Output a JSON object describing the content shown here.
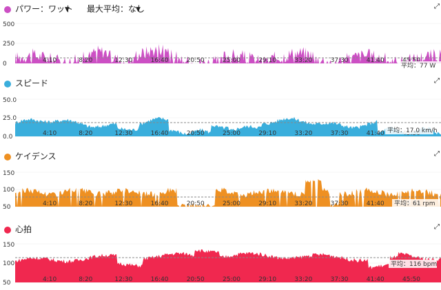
{
  "x_ticks": [
    "4:10",
    "8:20",
    "12:30",
    "16:40",
    "20:50",
    "25:00",
    "29:10",
    "33:20",
    "37:30",
    "41:40",
    "45:50"
  ],
  "panels": [
    {
      "key": "power",
      "title": "パワー：ワット",
      "has_dropdown": true,
      "avg_selector": "最大平均：なし",
      "color": "#cc4fc4",
      "y_ticks": [
        "500",
        "250",
        "0"
      ],
      "avg_label": "平均：77 W",
      "chart_data": {
        "type": "area",
        "ylim": [
          0,
          500
        ],
        "average": 77,
        "unit": "W"
      }
    },
    {
      "key": "speed",
      "title": "スピード",
      "color": "#3aaedc",
      "y_ticks": [
        "50.0",
        "25.0",
        "0.0"
      ],
      "avg_label": "平均：17.0 km/h",
      "chart_data": {
        "type": "area",
        "ylim": [
          0,
          50
        ],
        "average": 17.0,
        "unit": "km/h"
      }
    },
    {
      "key": "cadence",
      "title": "ケイデンス",
      "color": "#ee9022",
      "y_ticks": [
        "150",
        "100",
        "50"
      ],
      "avg_label": "平均：61 rpm",
      "chart_data": {
        "type": "area",
        "ylim": [
          0,
          150
        ],
        "average": 61,
        "unit": "rpm"
      }
    },
    {
      "key": "hr",
      "title": "心拍",
      "color": "#f0284f",
      "y_ticks": [
        "150",
        "100",
        "50"
      ],
      "avg_label": "平均：116 bpm",
      "chart_data": {
        "type": "area",
        "ylim": [
          50,
          150
        ],
        "average": 116,
        "unit": "bpm"
      }
    }
  ]
}
